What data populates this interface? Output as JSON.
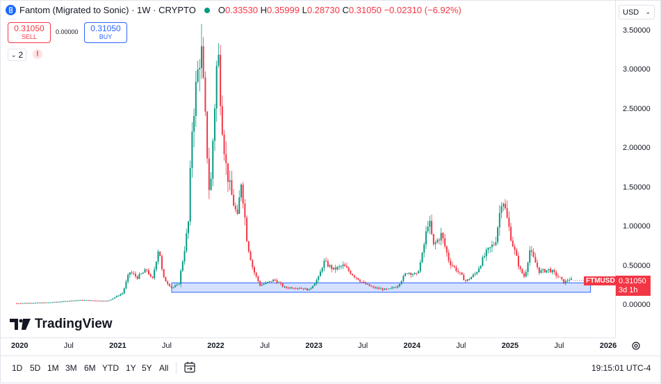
{
  "header": {
    "symbol_title": "Fantom (Migrated to Sonic) · 1W · CRYPTO",
    "ohlc": {
      "o_label": "O",
      "o": "0.33530",
      "h_label": "H",
      "h": "0.35999",
      "l_label": "L",
      "l": "0.28730",
      "c_label": "C",
      "c": "0.31050",
      "change": "−0.02310 (−6.92%)"
    },
    "sell": {
      "value": "0.31050",
      "label": "SELL"
    },
    "buy": {
      "value": "0.31050",
      "label": "BUY"
    },
    "spread": "0.00000",
    "indicators_count": "2",
    "warning": "!",
    "currency": "USD"
  },
  "price_tag": {
    "symbol": "FTMUSD",
    "price": "0.31050",
    "countdown": "3d 1h"
  },
  "brand": "TradingView",
  "toolbar": {
    "timeframes": [
      "1D",
      "5D",
      "1M",
      "3M",
      "6M",
      "YTD",
      "1Y",
      "5Y",
      "All"
    ],
    "clock": "19:15:01 UTC-4"
  },
  "colors": {
    "up": "#089981",
    "down": "#f23645",
    "range_fill": "#d5e1ff",
    "range_border": "#2962ff",
    "accent": "#2962ff"
  },
  "chart_data": {
    "type": "candlestick",
    "title": "Fantom (Migrated to Sonic) · 1W · CRYPTO",
    "ylim": [
      -0.25,
      3.6
    ],
    "y_ticks": [
      "3.50000",
      "3.00000",
      "2.50000",
      "2.00000",
      "1.50000",
      "1.00000",
      "0.50000",
      "0.00000"
    ],
    "x_ticks": [
      {
        "label": "2020",
        "x": 2020.0,
        "bold": true
      },
      {
        "label": "Jul",
        "x": 2020.5,
        "bold": false
      },
      {
        "label": "2021",
        "x": 2021.0,
        "bold": true
      },
      {
        "label": "Jul",
        "x": 2021.5,
        "bold": false
      },
      {
        "label": "2022",
        "x": 2022.0,
        "bold": true
      },
      {
        "label": "Jul",
        "x": 2022.5,
        "bold": false
      },
      {
        "label": "2023",
        "x": 2023.0,
        "bold": true
      },
      {
        "label": "Jul",
        "x": 2023.5,
        "bold": false
      },
      {
        "label": "2024",
        "x": 2024.0,
        "bold": true
      },
      {
        "label": "Jul",
        "x": 2024.5,
        "bold": false
      },
      {
        "label": "2025",
        "x": 2025.0,
        "bold": true
      },
      {
        "label": "Jul",
        "x": 2025.5,
        "bold": false
      },
      {
        "label": "2026",
        "x": 2026.0,
        "bold": true
      }
    ],
    "price_path": [
      [
        2019.97,
        0.02
      ],
      [
        2020.3,
        0.03
      ],
      [
        2020.6,
        0.06
      ],
      [
        2020.9,
        0.05
      ],
      [
        2021.05,
        0.15
      ],
      [
        2021.12,
        0.42
      ],
      [
        2021.2,
        0.35
      ],
      [
        2021.3,
        0.45
      ],
      [
        2021.35,
        0.3
      ],
      [
        2021.42,
        0.75
      ],
      [
        2021.46,
        0.35
      ],
      [
        2021.55,
        0.22
      ],
      [
        2021.62,
        0.25
      ],
      [
        2021.68,
        0.7
      ],
      [
        2021.72,
        1.05
      ],
      [
        2021.76,
        2.3
      ],
      [
        2021.8,
        2.8
      ],
      [
        2021.85,
        3.3
      ],
      [
        2021.9,
        2.2
      ],
      [
        2021.94,
        1.3
      ],
      [
        2021.97,
        2.1
      ],
      [
        2022.02,
        3.3
      ],
      [
        2022.06,
        2.4
      ],
      [
        2022.1,
        1.8
      ],
      [
        2022.15,
        1.45
      ],
      [
        2022.22,
        1.1
      ],
      [
        2022.26,
        1.6
      ],
      [
        2022.32,
        0.8
      ],
      [
        2022.38,
        0.45
      ],
      [
        2022.45,
        0.25
      ],
      [
        2022.5,
        0.27
      ],
      [
        2022.6,
        0.32
      ],
      [
        2022.7,
        0.22
      ],
      [
        2022.85,
        0.22
      ],
      [
        2022.95,
        0.19
      ],
      [
        2023.05,
        0.35
      ],
      [
        2023.1,
        0.55
      ],
      [
        2023.2,
        0.45
      ],
      [
        2023.3,
        0.5
      ],
      [
        2023.4,
        0.38
      ],
      [
        2023.5,
        0.28
      ],
      [
        2023.6,
        0.22
      ],
      [
        2023.75,
        0.19
      ],
      [
        2023.85,
        0.24
      ],
      [
        2023.95,
        0.42
      ],
      [
        2024.05,
        0.38
      ],
      [
        2024.1,
        0.6
      ],
      [
        2024.17,
        1.1
      ],
      [
        2024.22,
        0.75
      ],
      [
        2024.3,
        0.9
      ],
      [
        2024.38,
        0.55
      ],
      [
        2024.45,
        0.45
      ],
      [
        2024.55,
        0.3
      ],
      [
        2024.65,
        0.4
      ],
      [
        2024.75,
        0.65
      ],
      [
        2024.85,
        0.8
      ],
      [
        2024.92,
        1.4
      ],
      [
        2024.96,
        1.15
      ],
      [
        2025.02,
        0.8
      ],
      [
        2025.1,
        0.45
      ],
      [
        2025.15,
        0.35
      ],
      [
        2025.2,
        0.7
      ],
      [
        2025.3,
        0.42
      ],
      [
        2025.4,
        0.45
      ],
      [
        2025.5,
        0.35
      ],
      [
        2025.55,
        0.28
      ],
      [
        2025.6,
        0.33
      ],
      [
        2025.64,
        0.31
      ]
    ],
    "support_range": {
      "x_start": 2021.55,
      "x_end": 2025.82,
      "y_low": 0.16,
      "y_high": 0.28
    },
    "last_price": 0.3105
  }
}
